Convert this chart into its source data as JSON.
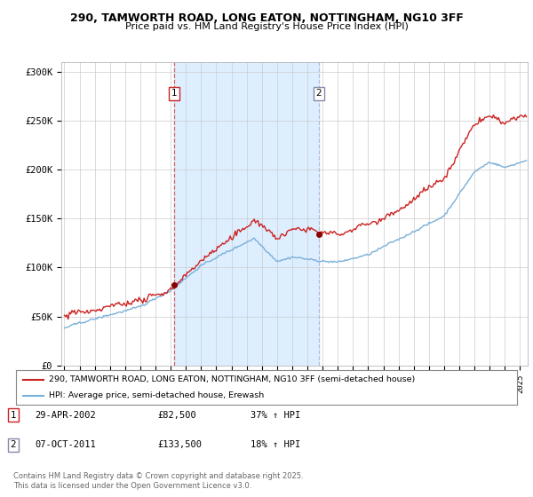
{
  "title_line1": "290, TAMWORTH ROAD, LONG EATON, NOTTINGHAM, NG10 3FF",
  "title_line2": "Price paid vs. HM Land Registry's House Price Index (HPI)",
  "background_color": "#ffffff",
  "plot_bg_color": "#ffffff",
  "shading_color": "#ddeeff",
  "legend_label_red": "290, TAMWORTH ROAD, LONG EATON, NOTTINGHAM, NG10 3FF (semi-detached house)",
  "legend_label_blue": "HPI: Average price, semi-detached house, Erewash",
  "purchase1_date": "29-APR-2002",
  "purchase1_price": 82500,
  "purchase1_hpi": "37% ↑ HPI",
  "purchase2_date": "07-OCT-2011",
  "purchase2_price": 133500,
  "purchase2_hpi": "18% ↑ HPI",
  "footer": "Contains HM Land Registry data © Crown copyright and database right 2025.\nThis data is licensed under the Open Government Licence v3.0.",
  "ylim": [
    0,
    310000
  ],
  "yticks": [
    0,
    50000,
    100000,
    150000,
    200000,
    250000,
    300000
  ],
  "ytick_labels": [
    "£0",
    "£50K",
    "£100K",
    "£150K",
    "£200K",
    "£250K",
    "£300K"
  ],
  "year_start": 1995,
  "year_end": 2025
}
